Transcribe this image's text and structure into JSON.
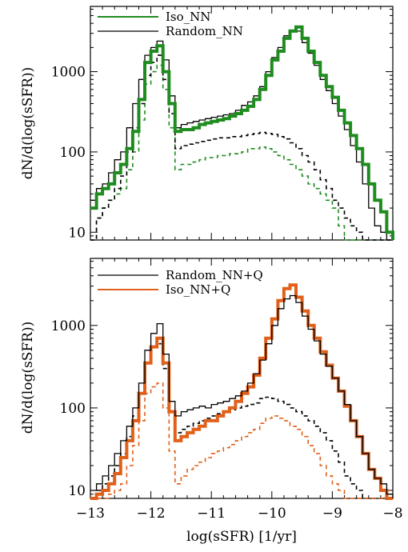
{
  "chart_data": [
    {
      "type": "line",
      "title": "",
      "ylabel": "dN/d(log(sSFR))",
      "xlabel": "",
      "yscale": "log",
      "xlim": [
        -13,
        -8
      ],
      "ylim": [
        8,
        6500
      ],
      "x_ticks": [
        -13,
        -12,
        -11,
        -10,
        -9,
        -8
      ],
      "y_tick_labels": [
        "10",
        "100",
        "1000"
      ],
      "y_tick_values": [
        10,
        100,
        1000
      ],
      "legend": {
        "placement": "top-left",
        "entries": [
          "Iso_NN",
          "Random_NN"
        ]
      },
      "grid": false,
      "bin_width": 0.1,
      "bin_start": -13,
      "series": [
        {
          "name": "Iso_NN",
          "style": "solid-thick",
          "color": "#1f8c1f",
          "values": [
            20,
            30,
            35,
            40,
            55,
            70,
            110,
            180,
            450,
            1300,
            1800,
            2100,
            1000,
            400,
            180,
            190,
            190,
            200,
            220,
            230,
            240,
            250,
            260,
            280,
            300,
            330,
            370,
            450,
            600,
            900,
            1400,
            1800,
            2600,
            3200,
            3600,
            2600,
            1800,
            1300,
            900,
            650,
            480,
            330,
            230,
            160,
            110,
            70,
            40,
            25,
            18,
            10,
            8
          ]
        },
        {
          "name": "Random_NN",
          "style": "solid-thin",
          "color": "#000000",
          "values": [
            25,
            35,
            40,
            55,
            80,
            100,
            200,
            400,
            800,
            1600,
            2000,
            2400,
            1400,
            500,
            200,
            220,
            230,
            240,
            250,
            260,
            270,
            280,
            290,
            300,
            330,
            380,
            420,
            500,
            650,
            1000,
            1500,
            2000,
            2800,
            3300,
            3200,
            2300,
            1700,
            1200,
            800,
            580,
            400,
            280,
            190,
            120,
            75,
            40,
            20,
            12,
            10,
            8,
            8
          ]
        },
        {
          "style": "dashed",
          "color": "#1f8c1f",
          "values": [
            8,
            15,
            20,
            25,
            30,
            35,
            60,
            100,
            250,
            700,
            1000,
            1200,
            600,
            200,
            60,
            70,
            70,
            75,
            80,
            85,
            85,
            90,
            90,
            95,
            95,
            100,
            110,
            110,
            115,
            110,
            100,
            90,
            80,
            70,
            60,
            50,
            40,
            35,
            30,
            25,
            20,
            12,
            8,
            8,
            8,
            8,
            8,
            8,
            8,
            8,
            8
          ]
        },
        {
          "style": "dashed",
          "color": "#000000",
          "values": [
            8,
            15,
            20,
            25,
            35,
            50,
            100,
            200,
            400,
            900,
            1300,
            1600,
            800,
            300,
            110,
            120,
            125,
            130,
            135,
            140,
            145,
            150,
            150,
            155,
            155,
            160,
            165,
            170,
            175,
            170,
            165,
            155,
            145,
            130,
            110,
            90,
            75,
            60,
            45,
            35,
            25,
            20,
            15,
            12,
            10,
            8,
            8,
            8,
            8,
            8,
            8
          ]
        }
      ]
    },
    {
      "type": "line",
      "title": "",
      "ylabel": "dN/d(log(sSFR))",
      "xlabel": "log(sSFR) [1/yr]",
      "yscale": "log",
      "xlim": [
        -13,
        -8
      ],
      "ylim": [
        8,
        6500
      ],
      "x_ticks": [
        -13,
        -12,
        -11,
        -10,
        -9,
        -8
      ],
      "x_tick_labels": [
        "−13",
        "−12",
        "−11",
        "−10",
        "−9",
        "−8"
      ],
      "y_tick_labels": [
        "10",
        "100",
        "1000"
      ],
      "y_tick_values": [
        10,
        100,
        1000
      ],
      "legend": {
        "placement": "top-left",
        "entries": [
          "Random_NN+Q",
          "Iso_NN+Q"
        ]
      },
      "grid": false,
      "bin_width": 0.1,
      "bin_start": -13,
      "series": [
        {
          "name": "Random_NN+Q",
          "style": "solid-thin",
          "color": "#000000",
          "values": [
            10,
            12,
            15,
            20,
            28,
            40,
            60,
            100,
            200,
            500,
            800,
            1050,
            450,
            120,
            80,
            90,
            95,
            100,
            105,
            100,
            110,
            115,
            120,
            130,
            140,
            160,
            200,
            260,
            380,
            600,
            1000,
            1600,
            2100,
            2300,
            1900,
            1300,
            900,
            650,
            450,
            320,
            230,
            160,
            110,
            70,
            45,
            28,
            18,
            14,
            12,
            9,
            8
          ]
        },
        {
          "name": "Iso_NN+Q",
          "style": "solid-thick",
          "color": "#e0601a",
          "values": [
            8,
            9,
            10,
            12,
            16,
            25,
            40,
            70,
            150,
            350,
            550,
            700,
            350,
            90,
            40,
            45,
            50,
            55,
            60,
            70,
            70,
            80,
            90,
            100,
            120,
            150,
            180,
            250,
            400,
            700,
            1200,
            2000,
            2800,
            3100,
            2200,
            1500,
            1000,
            700,
            480,
            330,
            230,
            160,
            105,
            70,
            45,
            28,
            18,
            14,
            10,
            8,
            8
          ]
        },
        {
          "style": "dashed",
          "color": "#000000",
          "values": [
            8,
            10,
            12,
            15,
            20,
            28,
            45,
            80,
            150,
            350,
            550,
            600,
            300,
            90,
            50,
            55,
            60,
            65,
            70,
            75,
            80,
            85,
            90,
            95,
            100,
            105,
            110,
            115,
            130,
            135,
            130,
            120,
            110,
            100,
            90,
            80,
            70,
            60,
            50,
            40,
            30,
            22,
            15,
            12,
            10,
            8,
            8,
            8,
            8,
            8,
            8
          ]
        },
        {
          "style": "dashed",
          "color": "#e0601a",
          "values": [
            8,
            8,
            8,
            9,
            10,
            12,
            20,
            35,
            70,
            150,
            180,
            200,
            100,
            30,
            12,
            15,
            18,
            20,
            22,
            25,
            28,
            30,
            33,
            36,
            40,
            45,
            50,
            55,
            65,
            75,
            80,
            75,
            70,
            60,
            55,
            45,
            35,
            28,
            20,
            15,
            12,
            10,
            8,
            8,
            8,
            8,
            8,
            8,
            8,
            8,
            8
          ]
        }
      ]
    }
  ]
}
